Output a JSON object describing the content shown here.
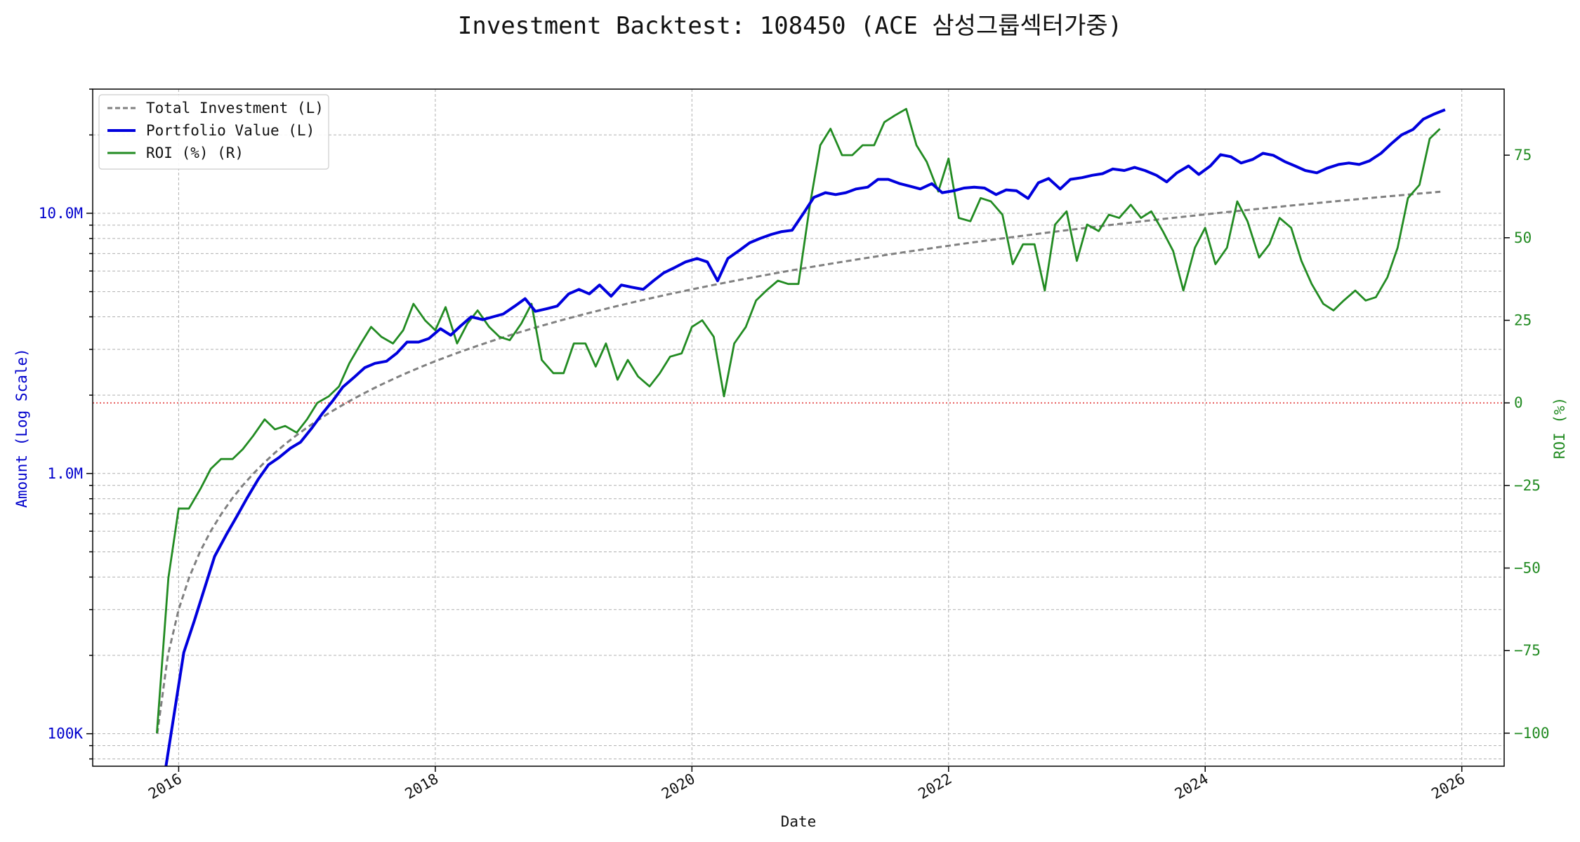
{
  "chart_data": {
    "type": "line",
    "title": "Investment Backtest: 108450 (ACE 삼성그룹섹터가중)",
    "xlabel": "Date",
    "ylabel_left": "Amount (Log Scale)",
    "ylabel_right": "ROI (%)",
    "y_left_scale": "log",
    "y_left_range": [
      75000,
      30000000
    ],
    "y_left_ticks": [
      {
        "value": 100000,
        "label": "100K"
      },
      {
        "value": 1000000,
        "label": "1.0M"
      },
      {
        "value": 10000000,
        "label": "10.0M"
      }
    ],
    "y_right_range": [
      -110,
      95
    ],
    "y_right_ticks": [
      {
        "value": -100,
        "label": "−100"
      },
      {
        "value": -75,
        "label": "−75"
      },
      {
        "value": -50,
        "label": "−50"
      },
      {
        "value": -25,
        "label": "−25"
      },
      {
        "value": 0,
        "label": "0"
      },
      {
        "value": 25,
        "label": "25"
      },
      {
        "value": 50,
        "label": "50"
      },
      {
        "value": 75,
        "label": "75"
      }
    ],
    "x_range": [
      2015.33,
      2026.33
    ],
    "x_ticks": [
      {
        "value": 2016,
        "label": "2016"
      },
      {
        "value": 2018,
        "label": "2018"
      },
      {
        "value": 2020,
        "label": "2020"
      },
      {
        "value": 2022,
        "label": "2022"
      },
      {
        "value": 2024,
        "label": "2024"
      },
      {
        "value": 2026,
        "label": "2026"
      }
    ],
    "grid": true,
    "legend_position": "top-left",
    "reference_line": {
      "axis": "right",
      "value": 0,
      "color": "#e03030"
    },
    "series": [
      {
        "name": "Total Investment (L)",
        "axis": "left",
        "style": "dashed",
        "color": "#808080",
        "x_start": 2015.833,
        "x_end": 2025.833,
        "start_value": 100000,
        "end_value": 12100000,
        "monthly_increment": 100000
      },
      {
        "name": "Portfolio Value (L)",
        "axis": "left",
        "style": "solid",
        "color": "#0000dd",
        "x": [
          2015.87,
          2016.04,
          2016.12,
          2016.2,
          2016.28,
          2016.37,
          2016.45,
          2016.53,
          2016.62,
          2016.7,
          2016.78,
          2016.87,
          2016.95,
          2017.04,
          2017.12,
          2017.2,
          2017.28,
          2017.37,
          2017.45,
          2017.53,
          2017.62,
          2017.7,
          2017.78,
          2017.87,
          2017.95,
          2018.04,
          2018.12,
          2018.2,
          2018.28,
          2018.37,
          2018.45,
          2018.53,
          2018.62,
          2018.7,
          2018.78,
          2018.87,
          2018.95,
          2019.04,
          2019.12,
          2019.2,
          2019.28,
          2019.37,
          2019.45,
          2019.53,
          2019.62,
          2019.7,
          2019.78,
          2019.87,
          2019.95,
          2020.04,
          2020.12,
          2020.2,
          2020.28,
          2020.37,
          2020.45,
          2020.53,
          2020.62,
          2020.7,
          2020.78,
          2020.87,
          2020.95,
          2021.04,
          2021.12,
          2021.2,
          2021.28,
          2021.37,
          2021.45,
          2021.53,
          2021.62,
          2021.7,
          2021.78,
          2021.87,
          2021.95,
          2022.04,
          2022.12,
          2022.2,
          2022.28,
          2022.37,
          2022.45,
          2022.53,
          2022.62,
          2022.7,
          2022.78,
          2022.87,
          2022.95,
          2023.04,
          2023.12,
          2023.2,
          2023.28,
          2023.37,
          2023.45,
          2023.53,
          2023.62,
          2023.7,
          2023.78,
          2023.87,
          2023.95,
          2024.04,
          2024.12,
          2024.2,
          2024.28,
          2024.37,
          2024.45,
          2024.53,
          2024.62,
          2024.7,
          2024.78,
          2024.87,
          2024.95,
          2025.04,
          2025.12,
          2025.2,
          2025.28,
          2025.37,
          2025.45,
          2025.53,
          2025.62,
          2025.7,
          2025.78,
          2025.87
        ],
        "values": [
          60000,
          205000,
          270000,
          360000,
          480000,
          580000,
          680000,
          800000,
          950000,
          1080000,
          1150000,
          1250000,
          1320000,
          1500000,
          1700000,
          1900000,
          2150000,
          2350000,
          2550000,
          2650000,
          2700000,
          2900000,
          3200000,
          3200000,
          3300000,
          3600000,
          3400000,
          3700000,
          4000000,
          3900000,
          4000000,
          4100000,
          4400000,
          4700000,
          4200000,
          4300000,
          4400000,
          4900000,
          5100000,
          4900000,
          5300000,
          4800000,
          5300000,
          5200000,
          5100000,
          5500000,
          5900000,
          6200000,
          6500000,
          6700000,
          6500000,
          5500000,
          6700000,
          7200000,
          7700000,
          8000000,
          8300000,
          8500000,
          8600000,
          10000000,
          11500000,
          12000000,
          11800000,
          12000000,
          12400000,
          12600000,
          13500000,
          13500000,
          13000000,
          12700000,
          12400000,
          13000000,
          12000000,
          12200000,
          12500000,
          12600000,
          12500000,
          11800000,
          12300000,
          12200000,
          11400000,
          13100000,
          13600000,
          12400000,
          13500000,
          13700000,
          14000000,
          14200000,
          14800000,
          14600000,
          15000000,
          14600000,
          14000000,
          13200000,
          14300000,
          15200000,
          14100000,
          15200000,
          16800000,
          16500000,
          15600000,
          16100000,
          17000000,
          16700000,
          15800000,
          15200000,
          14600000,
          14300000,
          14900000,
          15400000,
          15600000,
          15400000,
          15900000,
          17000000,
          18500000,
          20000000,
          21000000,
          23000000,
          24000000,
          25000000
        ]
      },
      {
        "name": "ROI (%) (R)",
        "axis": "right",
        "style": "solid",
        "color": "#228b22",
        "x": [
          2015.83,
          2015.92,
          2016.0,
          2016.08,
          2016.17,
          2016.25,
          2016.33,
          2016.42,
          2016.5,
          2016.58,
          2016.67,
          2016.75,
          2016.83,
          2016.92,
          2017.0,
          2017.08,
          2017.17,
          2017.25,
          2017.33,
          2017.42,
          2017.5,
          2017.58,
          2017.67,
          2017.75,
          2017.83,
          2017.92,
          2018.0,
          2018.08,
          2018.17,
          2018.25,
          2018.33,
          2018.42,
          2018.5,
          2018.58,
          2018.67,
          2018.75,
          2018.83,
          2018.92,
          2019.0,
          2019.08,
          2019.17,
          2019.25,
          2019.33,
          2019.42,
          2019.5,
          2019.58,
          2019.67,
          2019.75,
          2019.83,
          2019.92,
          2020.0,
          2020.08,
          2020.17,
          2020.25,
          2020.33,
          2020.42,
          2020.5,
          2020.58,
          2020.67,
          2020.75,
          2020.83,
          2020.92,
          2021.0,
          2021.08,
          2021.17,
          2021.25,
          2021.33,
          2021.42,
          2021.5,
          2021.58,
          2021.67,
          2021.75,
          2021.83,
          2021.92,
          2022.0,
          2022.08,
          2022.17,
          2022.25,
          2022.33,
          2022.42,
          2022.5,
          2022.58,
          2022.67,
          2022.75,
          2022.83,
          2022.92,
          2023.0,
          2023.08,
          2023.17,
          2023.25,
          2023.33,
          2023.42,
          2023.5,
          2023.58,
          2023.67,
          2023.75,
          2023.83,
          2023.92,
          2024.0,
          2024.08,
          2024.17,
          2024.25,
          2024.33,
          2024.42,
          2024.5,
          2024.58,
          2024.67,
          2024.75,
          2024.83,
          2024.92,
          2025.0,
          2025.08,
          2025.17,
          2025.25,
          2025.33,
          2025.42,
          2025.5,
          2025.58,
          2025.67,
          2025.75,
          2025.83
        ],
        "values": [
          -100,
          -53,
          -32,
          -32,
          -26,
          -20,
          -17,
          -17,
          -14,
          -10,
          -5,
          -8,
          -7,
          -9,
          -5,
          0,
          2,
          5,
          12,
          18,
          23,
          20,
          18,
          22,
          30,
          25,
          22,
          29,
          18,
          24,
          28,
          23,
          20,
          19,
          24,
          30,
          13,
          9,
          9,
          18,
          18,
          11,
          18,
          7,
          13,
          8,
          5,
          9,
          14,
          15,
          23,
          25,
          20,
          2,
          18,
          23,
          31,
          34,
          37,
          36,
          36,
          60,
          78,
          83,
          75,
          75,
          78,
          78,
          85,
          87,
          89,
          78,
          73,
          64,
          74,
          56,
          55,
          62,
          61,
          57,
          42,
          48,
          48,
          34,
          54,
          58,
          43,
          54,
          52,
          57,
          56,
          60,
          56,
          58,
          52,
          46,
          34,
          47,
          53,
          42,
          47,
          61,
          55,
          44,
          48,
          56,
          53,
          43,
          36,
          30,
          28,
          31,
          34,
          31,
          32,
          38,
          47,
          62,
          66,
          80,
          83
        ]
      }
    ]
  },
  "legend": [
    {
      "label": "Total Investment (L)",
      "color": "#808080",
      "style": "dashed"
    },
    {
      "label": "Portfolio Value (L)",
      "color": "#0000dd",
      "style": "solid"
    },
    {
      "label": "ROI (%) (R)",
      "color": "#228b22",
      "style": "solid"
    }
  ]
}
